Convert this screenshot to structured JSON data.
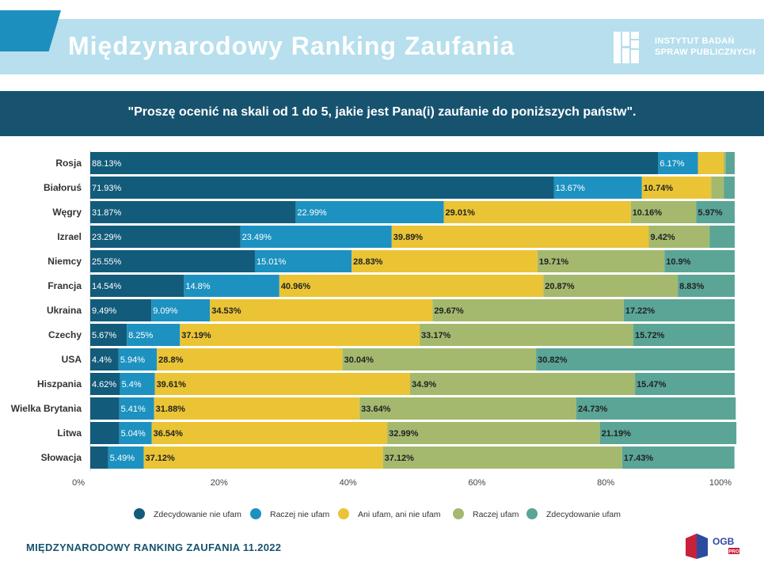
{
  "header": {
    "title": "Międzynarodowy Ranking Zaufania",
    "logo_line1": "INSTYTUT BADAŃ",
    "logo_line2": "SPRAW PUBLICZNYCH"
  },
  "question": "\"Proszę ocenić na skali od 1 do 5, jakie jest Pana(i) zaufanie do poniższych państw\".",
  "footer": {
    "title": "MIĘDZYNARODOWY RANKING ZAUFANIA 11.2022",
    "ogb_text": "OGB",
    "ogb_sub": "PRO"
  },
  "colors": {
    "header_band": "#b7dfed",
    "question_band": "#17536f",
    "series": [
      "#135b7a",
      "#1d92c0",
      "#eac435",
      "#a4b96e",
      "#5aa596"
    ]
  },
  "chart_data": {
    "type": "bar",
    "orientation": "horizontal",
    "stacked": true,
    "title": "",
    "xlabel": "",
    "ylabel": "",
    "xlim": [
      0,
      100
    ],
    "x_ticks": [
      "0%",
      "20%",
      "40%",
      "60%",
      "80%",
      "100%"
    ],
    "grid": false,
    "legend_position": "bottom",
    "categories": [
      "Rosja",
      "Białoruś",
      "Węgry",
      "Izrael",
      "Niemcy",
      "Francja",
      "Ukraina",
      "Czechy",
      "USA",
      "Hiszpania",
      "Wielka Brytania",
      "Litwa",
      "Słowacja"
    ],
    "series": [
      {
        "name": "Zdecydowanie nie ufam",
        "values": [
          88.13,
          71.93,
          31.87,
          23.29,
          25.55,
          14.54,
          9.49,
          5.67,
          4.4,
          4.62,
          4.5,
          4.5,
          2.8
        ],
        "labels": [
          "88.13%",
          "71.93%",
          "31.87%",
          "23.29%",
          "25.55%",
          "14.54%",
          "9.49%",
          "5.67%",
          "4.4%",
          "4.62%",
          "",
          "",
          ""
        ]
      },
      {
        "name": "Raczej nie ufam",
        "values": [
          6.17,
          13.67,
          22.99,
          23.49,
          15.01,
          14.8,
          9.09,
          8.25,
          5.94,
          5.4,
          5.41,
          5.04,
          5.49
        ],
        "labels": [
          "6.17%",
          "13.67%",
          "22.99%",
          "23.49%",
          "15.01%",
          "14.8%",
          "9.09%",
          "8.25%",
          "5.94%",
          "5.4%",
          "5.41%",
          "5.04%",
          "5.49%"
        ]
      },
      {
        "name": "Ani ufam, ani nie ufam",
        "values": [
          4.0,
          10.74,
          29.01,
          39.89,
          28.83,
          40.96,
          34.53,
          37.19,
          28.8,
          39.61,
          31.88,
          36.54,
          37.12
        ],
        "labels": [
          "",
          "10.74%",
          "29.01%",
          "39.89%",
          "28.83%",
          "40.96%",
          "34.53%",
          "37.19%",
          "28.8%",
          "39.61%",
          "31.88%",
          "36.54%",
          "37.12%"
        ]
      },
      {
        "name": "Raczej ufam",
        "values": [
          0.3,
          2.0,
          10.16,
          9.42,
          19.71,
          20.87,
          29.67,
          33.17,
          30.04,
          34.9,
          33.64,
          32.99,
          37.12
        ],
        "labels": [
          "",
          "",
          "10.16%",
          "9.42%",
          "19.71%",
          "20.87%",
          "29.67%",
          "33.17%",
          "30.04%",
          "34.9%",
          "33.64%",
          "32.99%",
          "37.12%"
        ]
      },
      {
        "name": "Zdecydowanie ufam",
        "values": [
          1.4,
          1.66,
          5.97,
          3.91,
          10.9,
          8.83,
          17.22,
          15.72,
          30.82,
          15.47,
          24.73,
          21.19,
          17.43
        ],
        "labels": [
          "",
          "",
          "5.97%",
          "",
          "10.9%",
          "8.83%",
          "17.22%",
          "15.72%",
          "30.82%",
          "15.47%",
          "24.73%",
          "21.19%",
          "17.43%"
        ]
      }
    ]
  }
}
